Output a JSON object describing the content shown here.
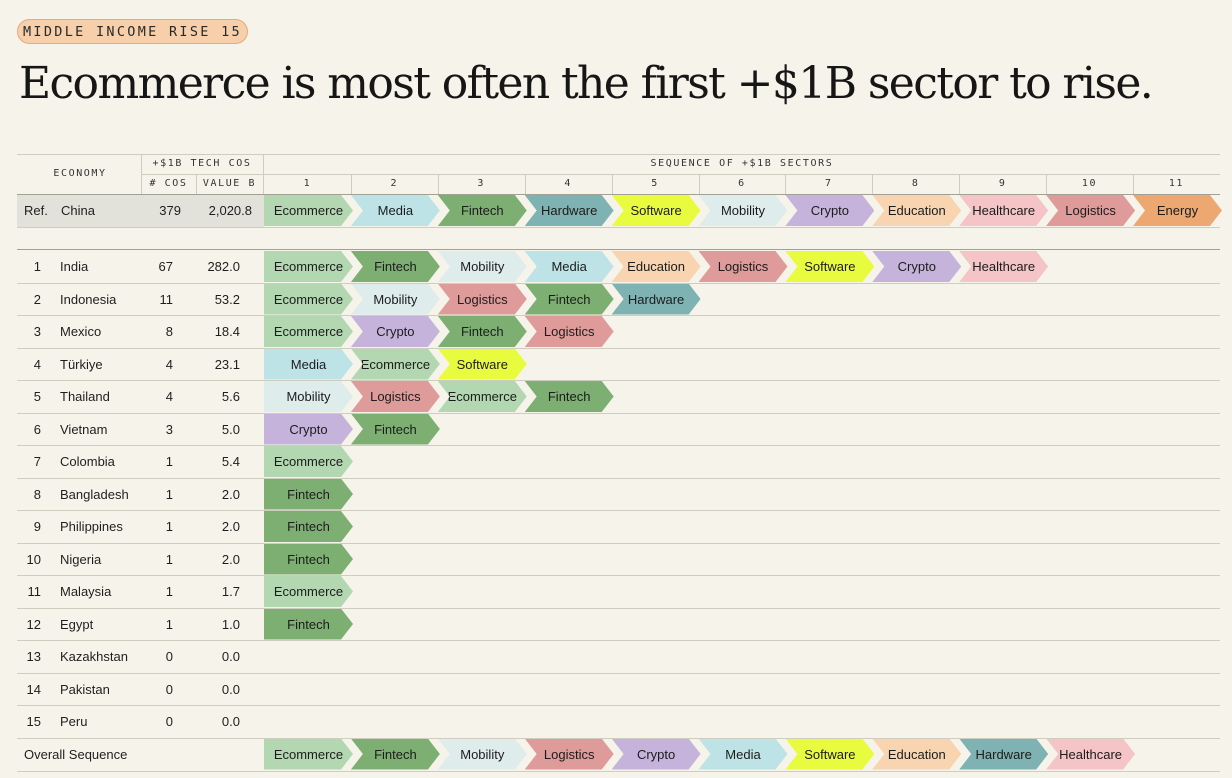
{
  "badge": "MIDDLE INCOME RISE 15",
  "title": "Ecommerce is most often the first +$1B sector to rise.",
  "header": {
    "economy": "ECONOMY",
    "tech_cos": "+$1B TECH COS",
    "num_cos": "# COS",
    "value_b": "VALUE B",
    "sequence": "SEQUENCE OF +$1B SECTORS",
    "positions": [
      "1",
      "2",
      "3",
      "4",
      "5",
      "6",
      "7",
      "8",
      "9",
      "10",
      "11"
    ]
  },
  "colors": {
    "Ecommerce": "#b3d7b0",
    "Media": "#bde3e7",
    "Fintech": "#7daf72",
    "Hardware": "#7fb2b2",
    "Software": "#e9fb3f",
    "Mobility": "#dfecec",
    "Crypto": "#c6b3dc",
    "Education": "#f8d4b0",
    "Healthcare": "#f4c4c6",
    "Logistics": "#df9a9a",
    "Energy": "#eda871"
  },
  "chart_data": {
    "type": "table",
    "title": "Ecommerce is most often the first +$1B sector to rise.",
    "columns": [
      "Economy",
      "# COS",
      "VALUE B",
      "Sequence of +$1B sectors"
    ],
    "reference": {
      "rank": "Ref.",
      "economy": "China",
      "cos": "379",
      "value": "2,020.8",
      "sequence": [
        "Ecommerce",
        "Media",
        "Fintech",
        "Hardware",
        "Software",
        "Mobility",
        "Crypto",
        "Education",
        "Healthcare",
        "Logistics",
        "Energy"
      ]
    },
    "rows": [
      {
        "rank": "1",
        "economy": "India",
        "cos": "67",
        "value": "282.0",
        "sequence": [
          "Ecommerce",
          "Fintech",
          "Mobility",
          "Media",
          "Education",
          "Logistics",
          "Software",
          "Crypto",
          "Healthcare"
        ]
      },
      {
        "rank": "2",
        "economy": "Indonesia",
        "cos": "11",
        "value": "53.2",
        "sequence": [
          "Ecommerce",
          "Mobility",
          "Logistics",
          "Fintech",
          "Hardware"
        ]
      },
      {
        "rank": "3",
        "economy": "Mexico",
        "cos": "8",
        "value": "18.4",
        "sequence": [
          "Ecommerce",
          "Crypto",
          "Fintech",
          "Logistics"
        ]
      },
      {
        "rank": "4",
        "economy": "Türkiye",
        "cos": "4",
        "value": "23.1",
        "sequence": [
          "Media",
          "Ecommerce",
          "Software"
        ]
      },
      {
        "rank": "5",
        "economy": "Thailand",
        "cos": "4",
        "value": "5.6",
        "sequence": [
          "Mobility",
          "Logistics",
          "Ecommerce",
          "Fintech"
        ]
      },
      {
        "rank": "6",
        "economy": "Vietnam",
        "cos": "3",
        "value": "5.0",
        "sequence": [
          "Crypto",
          "Fintech"
        ]
      },
      {
        "rank": "7",
        "economy": "Colombia",
        "cos": "1",
        "value": "5.4",
        "sequence": [
          "Ecommerce"
        ]
      },
      {
        "rank": "8",
        "economy": "Bangladesh",
        "cos": "1",
        "value": "2.0",
        "sequence": [
          "Fintech"
        ]
      },
      {
        "rank": "9",
        "economy": "Philippines",
        "cos": "1",
        "value": "2.0",
        "sequence": [
          "Fintech"
        ]
      },
      {
        "rank": "10",
        "economy": "Nigeria",
        "cos": "1",
        "value": "2.0",
        "sequence": [
          "Fintech"
        ]
      },
      {
        "rank": "11",
        "economy": "Malaysia",
        "cos": "1",
        "value": "1.7",
        "sequence": [
          "Ecommerce"
        ]
      },
      {
        "rank": "12",
        "economy": "Egypt",
        "cos": "1",
        "value": "1.0",
        "sequence": [
          "Fintech"
        ]
      },
      {
        "rank": "13",
        "economy": "Kazakhstan",
        "cos": "0",
        "value": "0.0",
        "sequence": []
      },
      {
        "rank": "14",
        "economy": "Pakistan",
        "cos": "0",
        "value": "0.0",
        "sequence": []
      },
      {
        "rank": "15",
        "economy": "Peru",
        "cos": "0",
        "value": "0.0",
        "sequence": []
      }
    ],
    "overall": {
      "label": "Overall Sequence",
      "sequence": [
        "Ecommerce",
        "Fintech",
        "Mobility",
        "Logistics",
        "Crypto",
        "Media",
        "Software",
        "Education",
        "Hardware",
        "Healthcare"
      ]
    }
  }
}
